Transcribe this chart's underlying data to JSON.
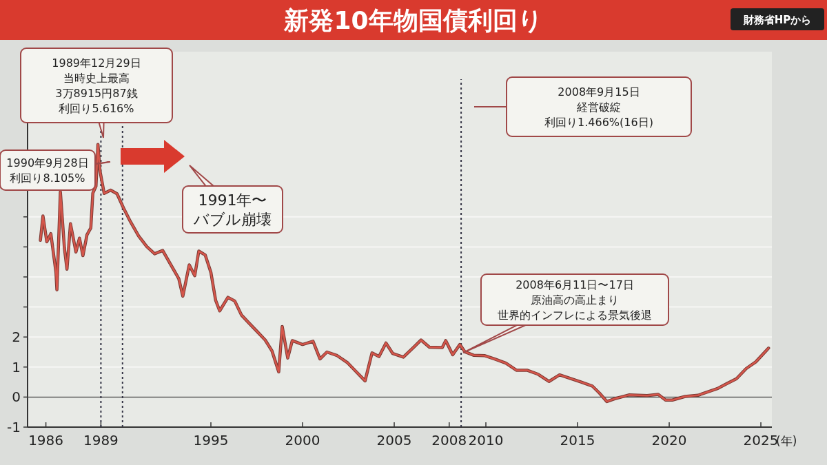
{
  "chart_data": {
    "type": "line",
    "title": "新発10年物国債利回り",
    "xlabel": "(年)",
    "annotations": [
      "財務省HPから",
      "1989年12月29日",
      "当時史上最高",
      "3万8915円87銭",
      "利回り5.616%",
      "1990年9月28日",
      "利回り8.105%",
      "1991年〜",
      "バブル崩壊",
      "2008年9月15日",
      "経営破綻",
      "利回り1.466%(16日)",
      "2008年6月11日〜17日",
      "原油高の高止まり",
      "世界的インフレによる景気後退"
    ],
    "series": [
      {
        "color": "#d6564b",
        "x": [
          1985.7,
          1985.84,
          1986.05,
          1986.27,
          1986.55,
          1986.6,
          1986.79,
          1987.01,
          1987.15,
          1987.34,
          1987.64,
          1987.83,
          1988.02,
          1988.24,
          1988.45,
          1988.56,
          1988.73,
          1988.84,
          1988.95,
          1989.18,
          1989.53,
          1989.88,
          1990.23,
          1990.62,
          1991.06,
          1991.5,
          1991.93,
          1992.37,
          1992.81,
          1993.25,
          1993.47,
          1993.82,
          1994.12,
          1994.34,
          1994.69,
          1995.0,
          1995.26,
          1995.48,
          1995.93,
          1996.3,
          1996.67,
          1997.04,
          1997.59,
          1997.96,
          1998.33,
          1998.7,
          1998.89,
          1999.19,
          1999.44,
          2000.0,
          2000.57,
          2000.95,
          2001.33,
          2001.89,
          2002.46,
          2002.95,
          2003.41,
          2003.79,
          2004.17,
          2004.55,
          2004.92,
          2005.5,
          2006.08,
          2006.46,
          2006.92,
          2007.62,
          2007.81,
          2008.19,
          2008.58,
          2008.85,
          2009.35,
          2009.92,
          2010.51,
          2011.09,
          2011.68,
          2012.27,
          2012.85,
          2013.44,
          2014.02,
          2014.61,
          2015.2,
          2015.8,
          2016.2,
          2016.6,
          2017.0,
          2017.8,
          2018.8,
          2019.4,
          2019.8,
          2020.17,
          2020.87,
          2021.57,
          2022.1,
          2022.62,
          2023.15,
          2023.67,
          2024.2,
          2024.72,
          2025.07,
          2025.42
        ],
        "values": [
          5.22,
          6.03,
          5.17,
          5.44,
          4.15,
          3.57,
          6.83,
          4.96,
          4.26,
          5.77,
          4.83,
          5.29,
          4.71,
          5.4,
          5.63,
          6.79,
          7.02,
          8.41,
          7.53,
          6.78,
          6.89,
          6.77,
          6.3,
          5.83,
          5.36,
          5.01,
          4.77,
          4.88,
          4.41,
          3.94,
          3.36,
          4.4,
          4.04,
          4.86,
          4.73,
          4.15,
          3.22,
          2.87,
          3.32,
          3.2,
          2.73,
          2.49,
          2.14,
          1.9,
          1.54,
          0.84,
          2.35,
          1.3,
          1.88,
          1.75,
          1.86,
          1.27,
          1.5,
          1.38,
          1.14,
          0.83,
          0.54,
          1.47,
          1.35,
          1.8,
          1.45,
          1.33,
          1.67,
          1.9,
          1.66,
          1.65,
          1.88,
          1.41,
          1.75,
          1.51,
          1.39,
          1.38,
          1.26,
          1.13,
          0.89,
          0.89,
          0.76,
          0.52,
          0.74,
          0.62,
          0.5,
          0.37,
          0.13,
          -0.15,
          -0.06,
          0.07,
          0.05,
          0.09,
          -0.1,
          -0.1,
          0.02,
          0.06,
          0.17,
          0.28,
          0.45,
          0.61,
          0.95,
          1.17,
          1.4,
          1.63
        ]
      }
    ],
    "xlim": [
      1985,
      2025.6
    ],
    "ylim": [
      -1,
      11.5
    ],
    "xticks": [
      1986,
      1989,
      1995,
      2000,
      2005,
      2008,
      2010,
      2015,
      2020,
      2025
    ],
    "yticks": [
      -1,
      0,
      1,
      2,
      {
        "value": 3,
        "label": null
      },
      {
        "value": 4,
        "label": null
      },
      {
        "value": 5,
        "label": null
      },
      {
        "value": 6,
        "label": null
      }
    ],
    "grid": "y",
    "marker": "none",
    "line_style": "solid",
    "ref_lines": [
      {
        "axis": "y",
        "value": 0,
        "color": "#555555",
        "line_style": "solid"
      },
      {
        "axis": "x",
        "value": 1989.0,
        "color": "#333344",
        "line_style": "dotted"
      },
      {
        "axis": "x",
        "value": 1990.18,
        "color": "#333344",
        "line_style": "dotted"
      },
      {
        "axis": "x",
        "value": 2008.65,
        "color": "#333344",
        "line_style": "dotted"
      }
    ]
  }
}
